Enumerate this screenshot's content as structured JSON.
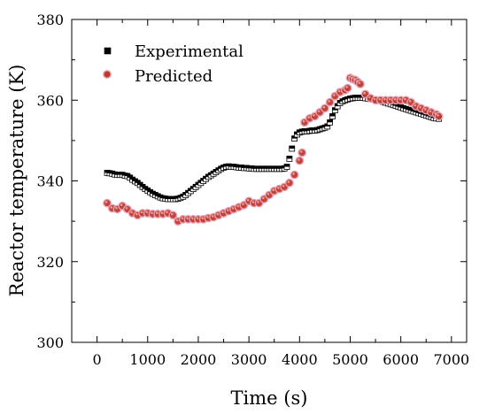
{
  "chart_data": {
    "type": "scatter",
    "title": "",
    "xlabel": "Time (s)",
    "ylabel": "Reactor temperature (K)",
    "xlim": [
      -500,
      7300
    ],
    "ylim": [
      300,
      380
    ],
    "xticks": [
      0,
      1000,
      2000,
      3000,
      4000,
      5000,
      6000,
      7000
    ],
    "yticks": [
      300,
      320,
      340,
      360,
      380
    ],
    "legend_position": "top-left",
    "grid": false,
    "series": [
      {
        "name": "Experimental",
        "marker": "square",
        "color": "#000000",
        "x": [
          200,
          250,
          300,
          350,
          400,
          450,
          500,
          550,
          600,
          650,
          700,
          750,
          800,
          850,
          900,
          950,
          1000,
          1050,
          1100,
          1150,
          1200,
          1250,
          1300,
          1350,
          1400,
          1450,
          1500,
          1550,
          1600,
          1650,
          1700,
          1750,
          1800,
          1850,
          1900,
          1950,
          2000,
          2050,
          2100,
          2150,
          2200,
          2250,
          2300,
          2350,
          2400,
          2450,
          2500,
          2550,
          2600,
          2650,
          2700,
          2750,
          2800,
          2850,
          2900,
          2950,
          3000,
          3050,
          3100,
          3150,
          3200,
          3250,
          3300,
          3350,
          3400,
          3450,
          3500,
          3550,
          3600,
          3650,
          3700,
          3750,
          3800,
          3850,
          3900,
          3950,
          4000,
          4050,
          4100,
          4150,
          4200,
          4250,
          4300,
          4350,
          4400,
          4450,
          4500,
          4550,
          4600,
          4650,
          4700,
          4750,
          4800,
          4850,
          4900,
          4950,
          5000,
          5050,
          5100,
          5150,
          5200,
          5250,
          5300,
          5350,
          5400,
          5450,
          5500,
          5550,
          5600,
          5650,
          5700,
          5750,
          5800,
          5850,
          5900,
          5950,
          6000,
          6050,
          6100,
          6150,
          6200,
          6250,
          6300,
          6350,
          6400,
          6450,
          6500,
          6550,
          6600,
          6650,
          6700,
          6750
        ],
        "y": [
          342.0,
          341.9,
          341.8,
          341.6,
          341.5,
          341.5,
          341.5,
          341.3,
          341.2,
          340.8,
          340.3,
          339.9,
          339.5,
          339.0,
          338.5,
          338.0,
          337.6,
          337.2,
          336.8,
          336.5,
          336.2,
          335.9,
          335.7,
          335.6,
          335.5,
          335.5,
          335.5,
          335.5,
          335.6,
          335.8,
          336.1,
          336.5,
          337.0,
          337.5,
          338.0,
          338.5,
          339.0,
          339.5,
          340.0,
          340.5,
          341.0,
          341.4,
          341.8,
          342.2,
          342.6,
          343.0,
          343.3,
          343.5,
          343.6,
          343.5,
          343.5,
          343.4,
          343.3,
          343.3,
          343.2,
          343.2,
          343.1,
          343.1,
          343.0,
          343.0,
          343.0,
          343.0,
          343.0,
          343.0,
          343.0,
          343.0,
          343.0,
          343.0,
          343.0,
          343.0,
          343.1,
          343.5,
          345.5,
          348.0,
          350.5,
          351.5,
          352.0,
          352.2,
          352.3,
          352.3,
          352.4,
          352.5,
          352.5,
          352.6,
          352.8,
          353.0,
          353.2,
          353.5,
          354.5,
          356.0,
          357.5,
          358.5,
          359.3,
          359.7,
          360.0,
          360.2,
          360.4,
          360.5,
          360.6,
          360.6,
          360.6,
          360.6,
          360.5,
          360.4,
          360.3,
          360.2,
          360.1,
          360.0,
          359.8,
          359.6,
          359.4,
          359.2,
          359.0,
          358.8,
          358.6,
          358.4,
          358.2,
          358.0,
          357.8,
          357.6,
          357.4,
          357.2,
          357.0,
          356.8,
          356.6,
          356.4,
          356.2,
          356.0,
          355.8,
          355.6,
          355.5,
          355.4
        ]
      },
      {
        "name": "Predicted",
        "marker": "circle",
        "color": "#c0392b",
        "x": [
          200,
          300,
          400,
          500,
          600,
          700,
          800,
          900,
          1000,
          1100,
          1200,
          1300,
          1400,
          1500,
          1600,
          1700,
          1800,
          1900,
          2000,
          2100,
          2200,
          2300,
          2400,
          2500,
          2600,
          2700,
          2800,
          2900,
          3000,
          3100,
          3200,
          3300,
          3400,
          3500,
          3600,
          3700,
          3800,
          3900,
          4000,
          4050,
          4100,
          4200,
          4300,
          4400,
          4500,
          4600,
          4700,
          4800,
          4900,
          4950,
          5000,
          5050,
          5100,
          5150,
          5200,
          5300,
          5400,
          5500,
          5600,
          5700,
          5800,
          5900,
          6000,
          6100,
          6200,
          6300,
          6400,
          6500,
          6600,
          6700,
          6750
        ],
        "y": [
          334.5,
          333.2,
          333.0,
          333.8,
          333.0,
          332.0,
          331.5,
          332.0,
          332.0,
          331.8,
          331.8,
          331.8,
          332.0,
          331.5,
          330.0,
          330.5,
          330.5,
          330.5,
          330.5,
          330.5,
          330.8,
          331.0,
          331.5,
          332.0,
          332.5,
          333.0,
          333.5,
          334.0,
          335.0,
          334.5,
          334.5,
          335.5,
          336.5,
          337.5,
          338.0,
          338.5,
          339.5,
          341.5,
          345.0,
          347.0,
          354.5,
          355.5,
          356.0,
          357.0,
          358.0,
          359.5,
          361.0,
          362.0,
          362.5,
          363.0,
          365.5,
          365.2,
          365.0,
          364.5,
          364.0,
          361.5,
          360.5,
          360.0,
          360.0,
          360.0,
          360.0,
          360.0,
          360.0,
          360.0,
          359.5,
          358.5,
          358.0,
          357.5,
          357.0,
          356.5,
          356.0
        ]
      }
    ]
  }
}
